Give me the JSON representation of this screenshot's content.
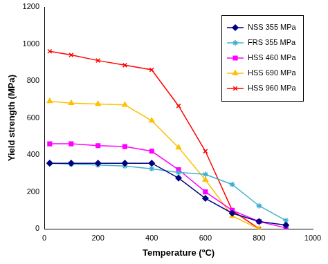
{
  "chart_data": {
    "type": "line",
    "x_label": "Temperature (ºC)",
    "y_label": "Yield strength (MPa)",
    "xlim": [
      0,
      1000
    ],
    "xticks": [
      0,
      200,
      400,
      600,
      800,
      1000
    ],
    "ylim": [
      0,
      1200
    ],
    "yticks": [
      0,
      200,
      400,
      600,
      800,
      1000,
      1200
    ],
    "grid": false,
    "legend": "top-right",
    "series": [
      {
        "name": "NSS 355 MPa",
        "color": "#000080",
        "marker": "diamond",
        "x": [
          20,
          100,
          200,
          300,
          400,
          500,
          600,
          700,
          800,
          900
        ],
        "values": [
          355,
          355,
          355,
          355,
          355,
          275,
          165,
          85,
          40,
          20
        ]
      },
      {
        "name": "FRS 355 MPa",
        "color": "#40B0D0",
        "marker": "star",
        "x": [
          20,
          100,
          200,
          300,
          400,
          500,
          600,
          700,
          800,
          900
        ],
        "values": [
          355,
          350,
          345,
          340,
          325,
          305,
          295,
          240,
          125,
          45
        ]
      },
      {
        "name": "HSS 460 MPa",
        "color": "#FF00FF",
        "marker": "square",
        "x": [
          20,
          100,
          200,
          300,
          400,
          500,
          600,
          700,
          800,
          900
        ],
        "values": [
          460,
          460,
          450,
          445,
          420,
          320,
          200,
          100,
          40,
          5
        ]
      },
      {
        "name": "HSS 690 MPa",
        "color": "#FFC000",
        "marker": "triangle",
        "x": [
          20,
          100,
          200,
          300,
          400,
          500,
          600,
          700,
          800
        ],
        "values": [
          690,
          680,
          675,
          670,
          585,
          440,
          265,
          70,
          0
        ]
      },
      {
        "name": "HSS 960 MPa",
        "color": "#FF0000",
        "marker": "x",
        "x": [
          20,
          100,
          200,
          300,
          400,
          500,
          600,
          700,
          800
        ],
        "values": [
          960,
          940,
          910,
          885,
          860,
          665,
          420,
          100,
          0
        ]
      }
    ]
  }
}
